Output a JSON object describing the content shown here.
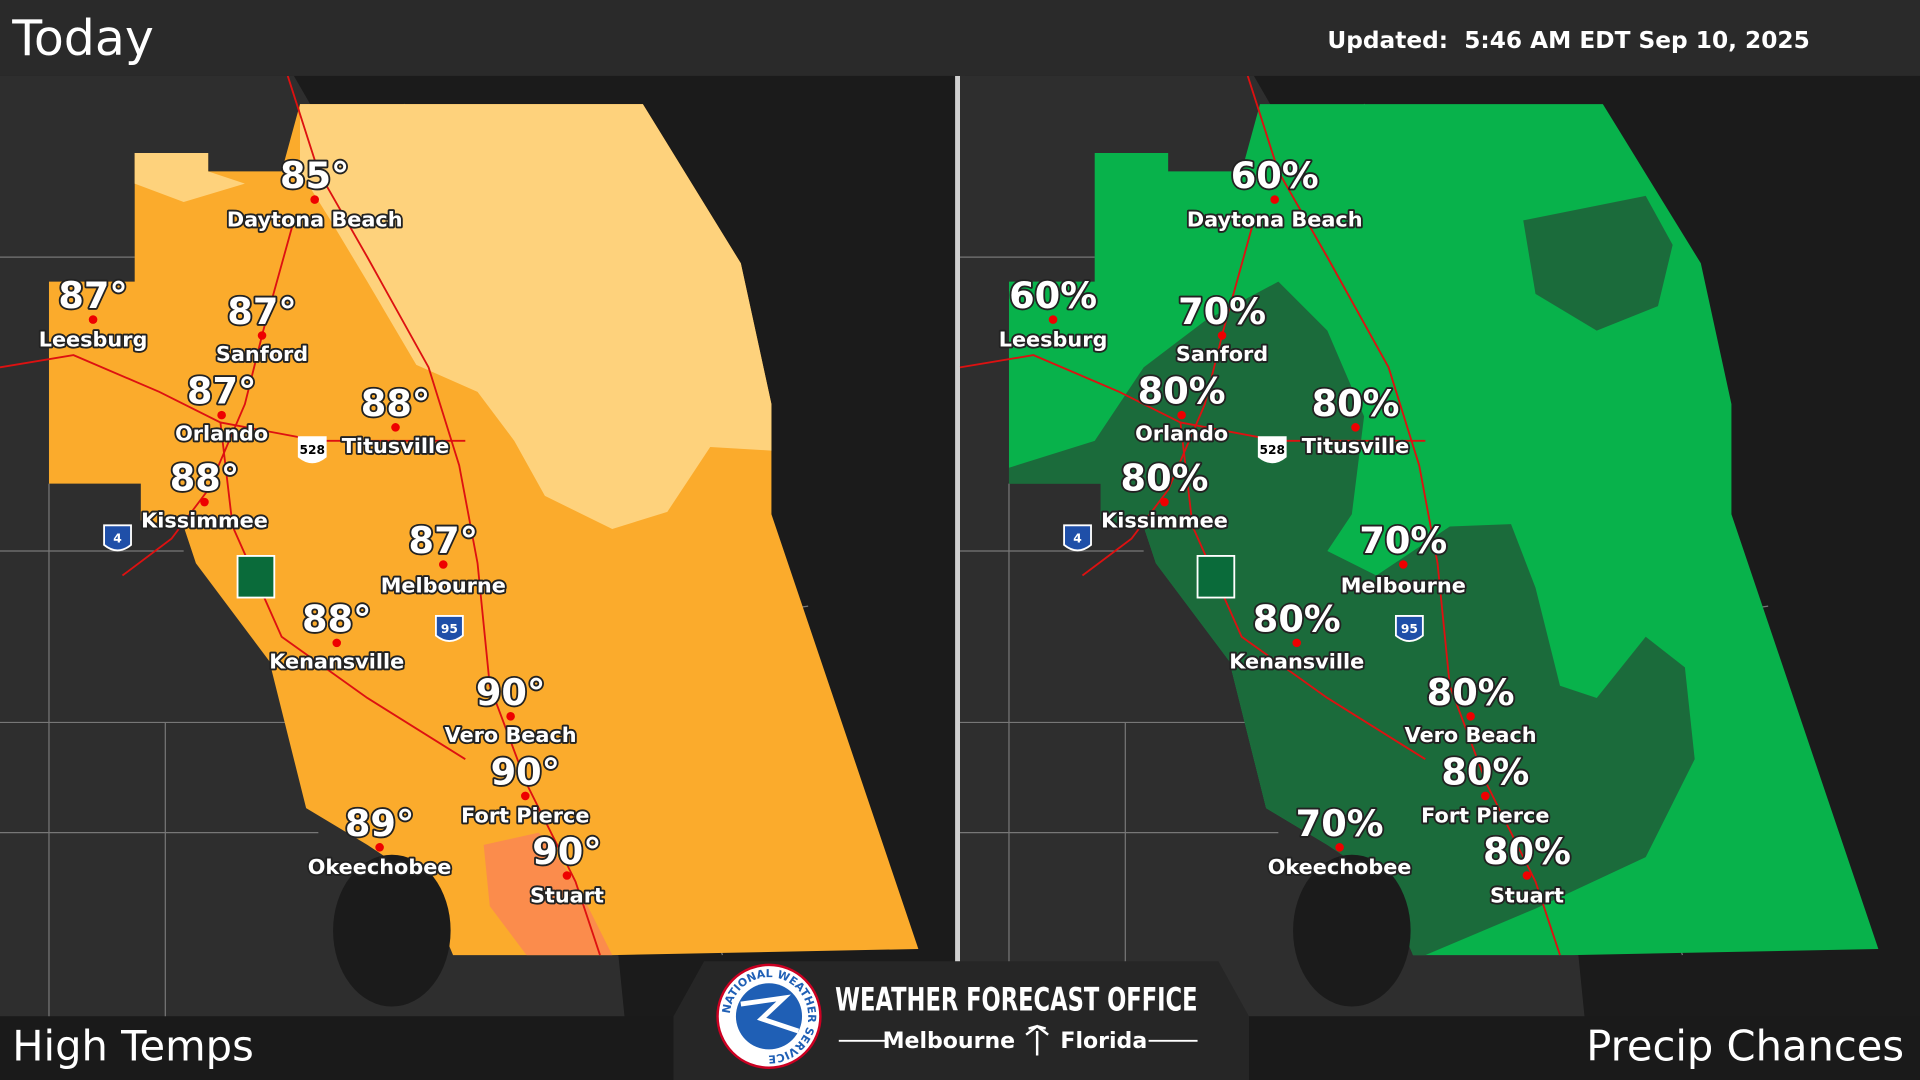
{
  "header": {
    "title": "Today",
    "updated": "Updated:  5:46 AM EDT Sep 10, 2025"
  },
  "panels": [
    {
      "title": "High Temps",
      "cities": [
        {
          "name": "Daytona Beach",
          "value": "85°"
        },
        {
          "name": "Leesburg",
          "value": "87°"
        },
        {
          "name": "Sanford",
          "value": "87°"
        },
        {
          "name": "Orlando",
          "value": "87°"
        },
        {
          "name": "Titusville",
          "value": "88°"
        },
        {
          "name": "Kissimmee",
          "value": "88°"
        },
        {
          "name": "Melbourne",
          "value": "87°"
        },
        {
          "name": "Kenansville",
          "value": "88°"
        },
        {
          "name": "Vero Beach",
          "value": "90°"
        },
        {
          "name": "Fort Pierce",
          "value": "90°"
        },
        {
          "name": "Okeechobee",
          "value": "89°"
        },
        {
          "name": "Stuart",
          "value": "90°"
        }
      ]
    },
    {
      "title": "Precip Chances",
      "cities": [
        {
          "name": "Daytona Beach",
          "value": "60%"
        },
        {
          "name": "Leesburg",
          "value": "60%"
        },
        {
          "name": "Sanford",
          "value": "70%"
        },
        {
          "name": "Orlando",
          "value": "80%"
        },
        {
          "name": "Titusville",
          "value": "80%"
        },
        {
          "name": "Kissimmee",
          "value": "80%"
        },
        {
          "name": "Melbourne",
          "value": "70%"
        },
        {
          "name": "Kenansville",
          "value": "80%"
        },
        {
          "name": "Vero Beach",
          "value": "80%"
        },
        {
          "name": "Fort Pierce",
          "value": "80%"
        },
        {
          "name": "Okeechobee",
          "value": "70%"
        },
        {
          "name": "Stuart",
          "value": "80%"
        }
      ]
    }
  ],
  "shields": [
    "528",
    "4",
    "95"
  ],
  "footer": {
    "office": "WEATHER FORECAST OFFICE",
    "city": "Melbourne",
    "state": "Florida",
    "logo": "NATIONAL WEATHER SERVICE"
  }
}
